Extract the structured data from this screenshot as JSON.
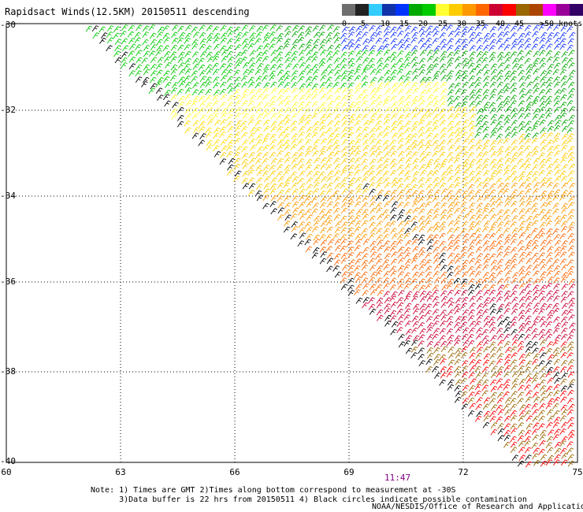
{
  "title": "Rapidsact Winds(12.5KM) 20150511 descending",
  "legend": {
    "colors": [
      "#6e6e6e",
      "#222222",
      "#33ccff",
      "#1133aa",
      "#0033ff",
      "#00aa00",
      "#00cc00",
      "#ffff33",
      "#ffcc00",
      "#ff9900",
      "#ff6600",
      "#cc0033",
      "#ff0000",
      "#996600",
      "#aa4400",
      "#ff00ff",
      "#990099",
      "#330066"
    ],
    "labels": [
      "0",
      "5",
      "10",
      "15",
      "20",
      "25",
      "30",
      "35",
      "40",
      "45",
      ">50 knots"
    ]
  },
  "axes": {
    "lat_labels": [
      "-30",
      "-32",
      "-34",
      "-36",
      "-38",
      "-40"
    ],
    "lon_labels": [
      "60",
      "63",
      "66",
      "69",
      "72",
      "75"
    ]
  },
  "time_label": "11:47",
  "notes": {
    "line1": "Note: 1) Times are GMT 2)Times along bottom correspond to measurement at -30S",
    "line2": "      3)Data buffer is 22 hrs from 20150511 4) Black circles indicate possible contamination"
  },
  "credit": "NOAA/NESDIS/Office of Research and Applications"
}
